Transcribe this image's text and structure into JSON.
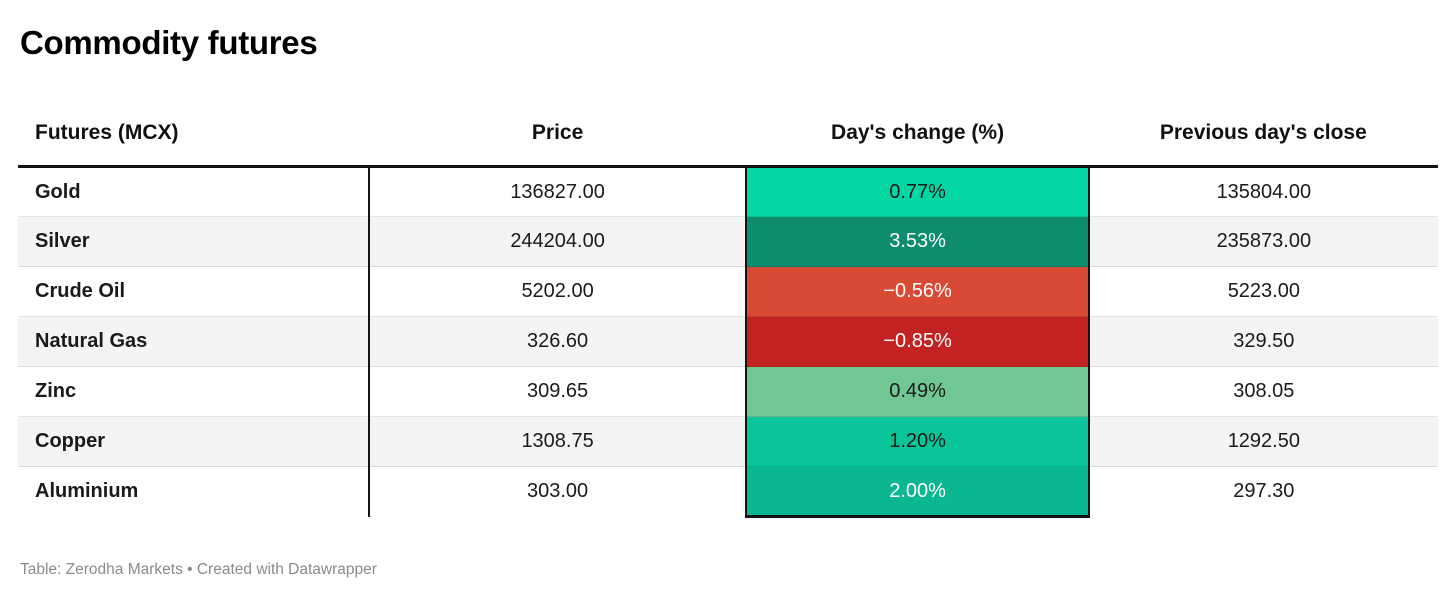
{
  "title": "Commodity futures",
  "table": {
    "columns": [
      "Futures (MCX)",
      "Price",
      "Day's change (%)",
      "Previous day's close"
    ],
    "rows": [
      {
        "name": "Gold",
        "price": "136827.00",
        "change": "0.77%",
        "prev_close": "135804.00",
        "change_bg": "#04d7a4",
        "change_fg": "#1a1a1a"
      },
      {
        "name": "Silver",
        "price": "244204.00",
        "change": "3.53%",
        "prev_close": "235873.00",
        "change_bg": "#0d8c70",
        "change_fg": "#ffffff"
      },
      {
        "name": "Crude Oil",
        "price": "5202.00",
        "change": "−0.56%",
        "prev_close": "5223.00",
        "change_bg": "#d94a35",
        "change_fg": "#ffffff"
      },
      {
        "name": "Natural Gas",
        "price": "326.60",
        "change": "−0.85%",
        "prev_close": "329.50",
        "change_bg": "#c32222",
        "change_fg": "#ffffff"
      },
      {
        "name": "Zinc",
        "price": "309.65",
        "change": "0.49%",
        "prev_close": "308.05",
        "change_bg": "#71c794",
        "change_fg": "#1a1a1a"
      },
      {
        "name": "Copper",
        "price": "1308.75",
        "change": "1.20%",
        "prev_close": "1292.50",
        "change_bg": "#0bc59a",
        "change_fg": "#1a1a1a"
      },
      {
        "name": "Aluminium",
        "price": "303.00",
        "change": "2.00%",
        "prev_close": "297.30",
        "change_bg": "#0ab791",
        "change_fg": "#ffffff"
      }
    ]
  },
  "footer": {
    "text": "Table: Zerodha Markets • Created with Datawrapper"
  },
  "colors": {
    "header_border": "#141414",
    "stripe": "#f4f4f4",
    "footer_text": "#8a8a8a",
    "positive_strong": "#0d8c70",
    "positive_bright": "#04d7a4",
    "negative_strong": "#c32222",
    "negative_light": "#d94a35"
  },
  "chart_data": {
    "type": "table",
    "title": "Commodity futures",
    "columns": [
      "Futures (MCX)",
      "Price",
      "Day's change (%)",
      "Previous day's close"
    ],
    "rows": [
      [
        "Gold",
        136827.0,
        0.77,
        135804.0
      ],
      [
        "Silver",
        244204.0,
        3.53,
        235873.0
      ],
      [
        "Crude Oil",
        5202.0,
        -0.56,
        5223.0
      ],
      [
        "Natural Gas",
        326.6,
        -0.85,
        329.5
      ],
      [
        "Zinc",
        309.65,
        0.49,
        308.05
      ],
      [
        "Copper",
        1308.75,
        1.2,
        1292.5
      ],
      [
        "Aluminium",
        303.0,
        2.0,
        297.3
      ]
    ],
    "layout_hints": {
      "heatmap_column": "Day's change (%)",
      "heatmap_scale": "red (negative) to green (positive)",
      "zebra_striping": true
    }
  }
}
